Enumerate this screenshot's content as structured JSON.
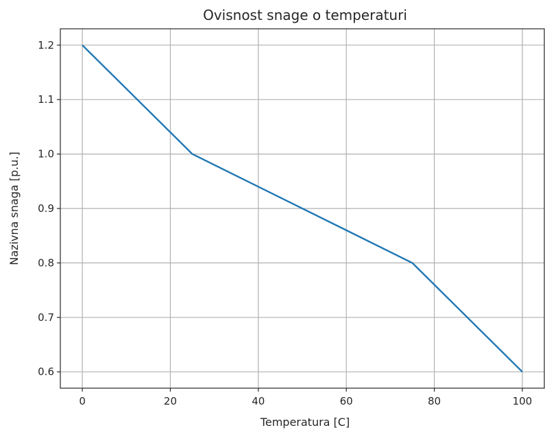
{
  "chart_data": {
    "type": "line",
    "title": "Ovisnost snage o temperaturi",
    "xlabel": "Temperatura [C]",
    "ylabel": "Nazivna snaga [p.u.]",
    "xlim": [
      -5,
      105
    ],
    "ylim": [
      0.57,
      1.23
    ],
    "xticks": [
      0,
      20,
      40,
      60,
      80,
      100
    ],
    "xtick_labels": [
      "0",
      "20",
      "40",
      "60",
      "80",
      "100"
    ],
    "yticks": [
      0.6,
      0.7,
      0.8,
      0.9,
      1.0,
      1.1,
      1.2
    ],
    "ytick_labels": [
      "0.6",
      "0.7",
      "0.8",
      "0.9",
      "1.0",
      "1.1",
      "1.2"
    ],
    "grid": true,
    "series": [
      {
        "color": "#1f77b4",
        "x": [
          0,
          25,
          75,
          100
        ],
        "y": [
          1.2,
          1.0,
          0.8,
          0.6
        ]
      }
    ]
  }
}
